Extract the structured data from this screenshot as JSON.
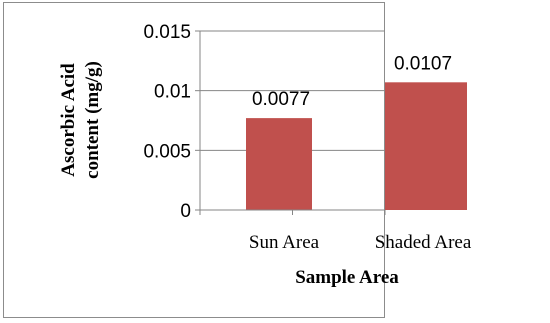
{
  "chart_data": {
    "type": "bar",
    "categories": [
      "Sun Area",
      "Shaded Area"
    ],
    "values": [
      0.0077,
      0.0107
    ],
    "data_labels": [
      "0.0077",
      "0.0107"
    ],
    "xlabel": "Sample Area",
    "ylabel_lines": [
      "Ascorbic Acid",
      "content (mg/g)"
    ],
    "ylim": [
      0,
      0.015
    ],
    "yticks": [
      0,
      0.005,
      0.01,
      0.015
    ],
    "ytick_labels": [
      "0",
      "0.005",
      "0.01",
      "0.015"
    ],
    "grid": true,
    "legend": "none",
    "bar_color": "#c0504d",
    "grid_color": "#868686"
  }
}
